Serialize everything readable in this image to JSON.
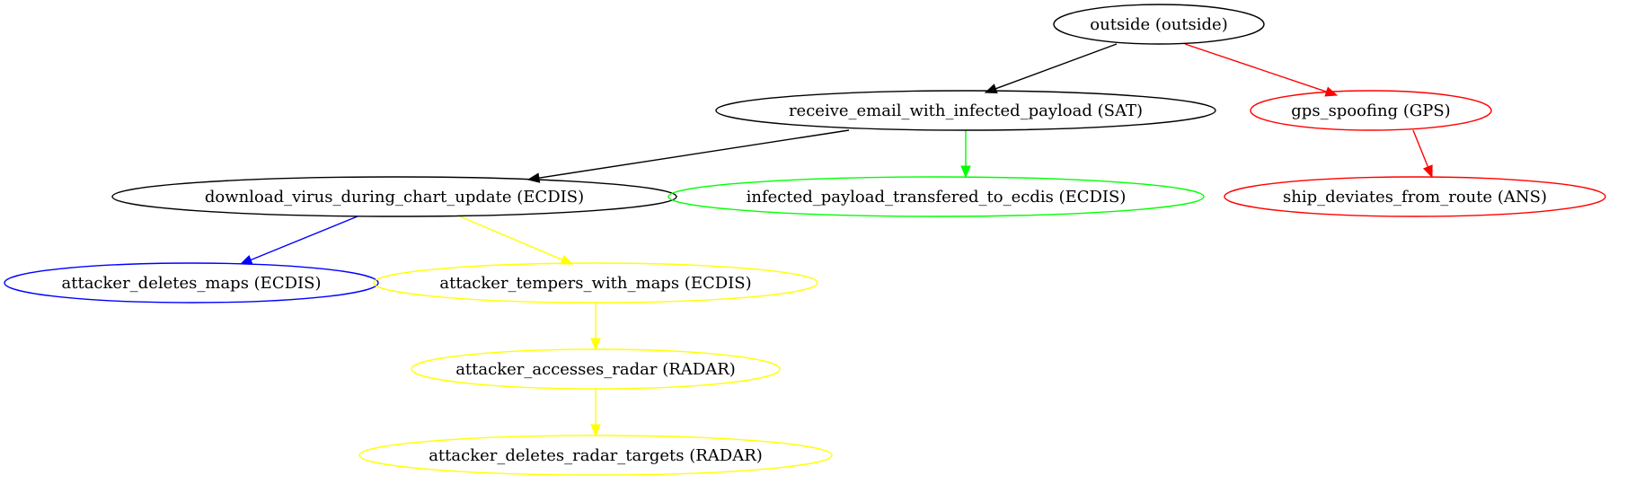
{
  "colors": {
    "background": "#ffffff",
    "text": "#000000",
    "black": "#000000",
    "red": "#ff0000",
    "green": "#00ff00",
    "blue": "#0000ff",
    "yellow": "#ffff00"
  },
  "nodes": [
    {
      "id": "outside",
      "label": "outside (outside)",
      "color": "#000000"
    },
    {
      "id": "receive_email",
      "label": "receive_email_with_infected_payload (SAT)",
      "color": "#000000"
    },
    {
      "id": "gps_spoofing",
      "label": "gps_spoofing (GPS)",
      "color": "#ff0000"
    },
    {
      "id": "download_virus",
      "label": "download_virus_during_chart_update (ECDIS)",
      "color": "#000000"
    },
    {
      "id": "infected_payload",
      "label": "infected_payload_transfered_to_ecdis (ECDIS)",
      "color": "#00ff00"
    },
    {
      "id": "ship_deviates",
      "label": "ship_deviates_from_route (ANS)",
      "color": "#ff0000"
    },
    {
      "id": "attacker_deletes_maps",
      "label": "attacker_deletes_maps (ECDIS)",
      "color": "#0000ff"
    },
    {
      "id": "attacker_tempers",
      "label": "attacker_tempers_with_maps (ECDIS)",
      "color": "#ffff00"
    },
    {
      "id": "attacker_accesses_radar",
      "label": "attacker_accesses_radar (RADAR)",
      "color": "#ffff00"
    },
    {
      "id": "attacker_deletes_radar",
      "label": "attacker_deletes_radar_targets (RADAR)",
      "color": "#ffff00"
    }
  ],
  "edges": [
    {
      "from": "outside",
      "to": "receive_email",
      "color": "#000000"
    },
    {
      "from": "outside",
      "to": "gps_spoofing",
      "color": "#ff0000"
    },
    {
      "from": "receive_email",
      "to": "download_virus",
      "color": "#000000"
    },
    {
      "from": "receive_email",
      "to": "infected_payload",
      "color": "#00ff00"
    },
    {
      "from": "gps_spoofing",
      "to": "ship_deviates",
      "color": "#ff0000"
    },
    {
      "from": "download_virus",
      "to": "attacker_deletes_maps",
      "color": "#0000ff"
    },
    {
      "from": "download_virus",
      "to": "attacker_tempers",
      "color": "#ffff00"
    },
    {
      "from": "attacker_tempers",
      "to": "attacker_accesses_radar",
      "color": "#ffff00"
    },
    {
      "from": "attacker_accesses_radar",
      "to": "attacker_deletes_radar",
      "color": "#ffff00"
    }
  ]
}
